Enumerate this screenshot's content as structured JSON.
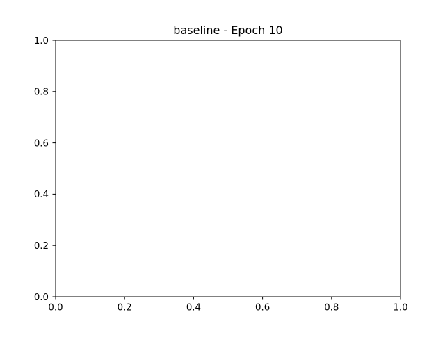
{
  "chart_data": {
    "type": "line",
    "title": "baseline - Epoch 10",
    "xlabel": "",
    "ylabel": "",
    "xlim": [
      0.0,
      1.0
    ],
    "ylim": [
      0.0,
      1.0
    ],
    "xticks": [
      0.0,
      0.2,
      0.4,
      0.6,
      0.8,
      1.0
    ],
    "yticks": [
      0.0,
      0.2,
      0.4,
      0.6,
      0.8,
      1.0
    ],
    "xtick_labels": [
      "0.0",
      "0.2",
      "0.4",
      "0.6",
      "0.8",
      "1.0"
    ],
    "ytick_labels": [
      "0.0",
      "0.2",
      "0.4",
      "0.6",
      "0.8",
      "1.0"
    ],
    "grid": false,
    "series": []
  }
}
